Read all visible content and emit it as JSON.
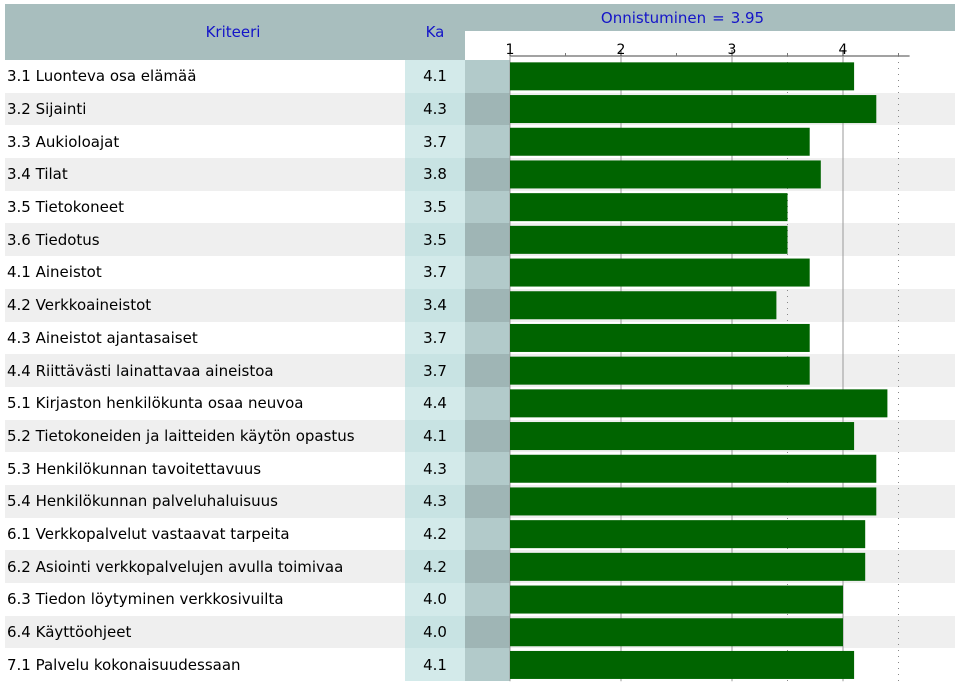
{
  "header": {
    "criteria_label": "Kriteeri",
    "mean_label": "Ka",
    "chart_title": "Onnistuminen",
    "chart_equals": "=",
    "chart_value": "3.95"
  },
  "colors": {
    "bar": "#006400",
    "header_bg": "#a8bebe",
    "header_text": "#1414c8"
  },
  "chart_data": {
    "type": "bar",
    "orientation": "horizontal",
    "title": "Onnistuminen = 3.95",
    "reference_value": 3.95,
    "xlim": [
      1,
      4.6
    ],
    "ticks": [
      "1",
      "2",
      "3",
      "4"
    ],
    "categories": [
      "3.1 Luonteva osa elämää",
      "3.2 Sijainti",
      "3.3 Aukioloajat",
      "3.4 Tilat",
      "3.5 Tietokoneet",
      "3.6 Tiedotus",
      "4.1 Aineistot",
      "4.2 Verkkoaineistot",
      "4.3 Aineistot ajantasaiset",
      "4.4 Riittävästi lainattavaa aineistoa",
      "5.1 Kirjaston henkilökunta osaa neuvoa",
      "5.2 Tietokoneiden ja laitteiden käytön opastus",
      "5.3 Henkilökunnan tavoitettavuus",
      "5.4 Henkilökunnan palveluhaluisuus",
      "6.1 Verkkopalvelut vastaavat tarpeita",
      "6.2 Asiointi verkkopalvelujen avulla toimivaa",
      "6.3 Tiedon löytyminen verkkosivuilta",
      "6.4 Käyttöohjeet",
      "7.1 Palvelu kokonaisuudessaan"
    ],
    "labels": [
      "4.1",
      "4.3",
      "3.7",
      "3.8",
      "3.5",
      "3.5",
      "3.7",
      "3.4",
      "3.7",
      "3.7",
      "4.4",
      "4.1",
      "4.3",
      "4.3",
      "4.2",
      "4.2",
      "4.0",
      "4.0",
      "4.1"
    ],
    "values": [
      4.1,
      4.3,
      3.7,
      3.8,
      3.5,
      3.5,
      3.7,
      3.4,
      3.7,
      3.7,
      4.4,
      4.1,
      4.3,
      4.3,
      4.2,
      4.2,
      4.0,
      4.0,
      4.1
    ]
  }
}
